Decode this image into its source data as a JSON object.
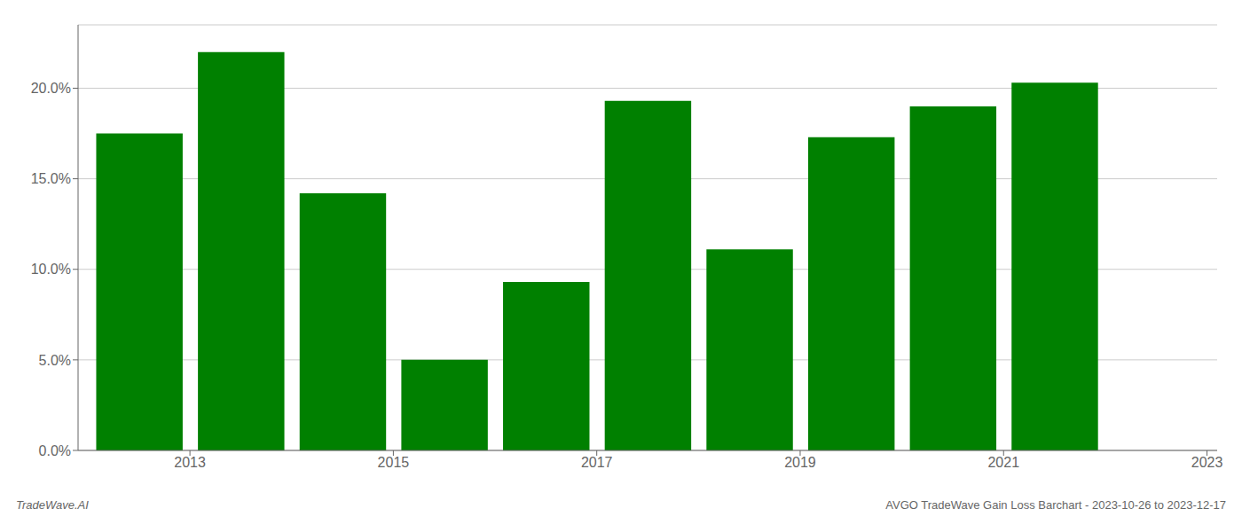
{
  "chart_data": {
    "type": "bar",
    "x": [
      2013,
      2014,
      2015,
      2016,
      2017,
      2018,
      2019,
      2020,
      2021,
      2022
    ],
    "values": [
      0.175,
      0.22,
      0.142,
      0.05,
      0.093,
      0.193,
      0.111,
      0.173,
      0.19,
      0.203
    ],
    "color": "#008000",
    "xlim": [
      2012.4,
      2023.6
    ],
    "xticks": [
      {
        "value": 2013.5,
        "label": "2013"
      },
      {
        "value": 2015.5,
        "label": "2015"
      },
      {
        "value": 2017.5,
        "label": "2017"
      },
      {
        "value": 2019.5,
        "label": "2019"
      },
      {
        "value": 2021.5,
        "label": "2021"
      },
      {
        "value": 2023.5,
        "label": "2023"
      }
    ],
    "ylim": [
      0,
      0.235
    ],
    "yticks": [
      {
        "value": 0,
        "label": "0.0%"
      },
      {
        "value": 0.05,
        "label": "5.0%"
      },
      {
        "value": 0.1,
        "label": "10.0%"
      },
      {
        "value": 0.15,
        "label": "15.0%"
      },
      {
        "value": 0.2,
        "label": "20.0%"
      }
    ],
    "grid": true,
    "annotations": [
      "TradeWave.AI",
      "AVGO TradeWave Gain Loss Barchart - 2023-10-26 to 2023-12-17"
    ]
  }
}
